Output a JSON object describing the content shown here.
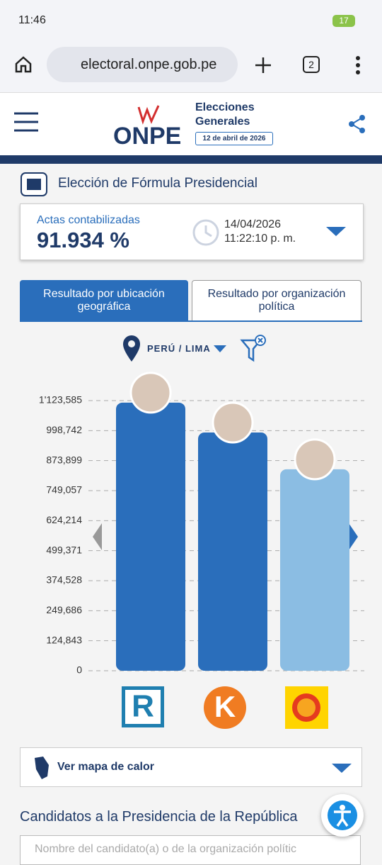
{
  "status_bar": {
    "time": "11:46",
    "battery": "17"
  },
  "browser": {
    "url": "electoral.onpe.gob.pe",
    "tabs": "2"
  },
  "header": {
    "logo": "ONPE",
    "line1": "Elecciones",
    "line2": "Generales",
    "date": "12 de abril de 2026"
  },
  "section_title": "Elección de Fórmula Presidencial",
  "summary": {
    "label": "Actas contabilizadas",
    "percent": "91.934 %",
    "date": "14/04/2026",
    "time": "11:22:10 p. m."
  },
  "tabs": [
    "Resultado por ubicación geográfica",
    "Resultado por organización política"
  ],
  "location": "PERÚ / LIMA",
  "chart_data": {
    "type": "bar",
    "categories": [
      null,
      null,
      null
    ],
    "values": [
      1115000,
      991000,
      838000
    ],
    "colors": [
      "#2a6ebb",
      "#2a6ebb",
      "#8bbde3"
    ],
    "ylim": [
      0,
      1123585
    ],
    "yticks": [
      0,
      {
        "value": 124843,
        "label": "124,843"
      },
      {
        "value": 249686,
        "label": "249,686"
      },
      {
        "value": 374528,
        "label": "374,528"
      },
      {
        "value": 499371,
        "label": "499,371"
      },
      {
        "value": 624214,
        "label": "624,214"
      },
      {
        "value": 749057,
        "label": "749,057"
      },
      {
        "value": 873899,
        "label": "873,899"
      },
      {
        "value": 998742,
        "label": "998,742"
      },
      {
        "value": 1123585,
        "label": "1'123,585"
      }
    ],
    "grid": true
  },
  "heatmap": "Ver mapa de calor",
  "candidates_title": "Candidatos a la Presidencia de la República",
  "search_placeholder": "Nombre del candidato(a) o de la organización polític"
}
